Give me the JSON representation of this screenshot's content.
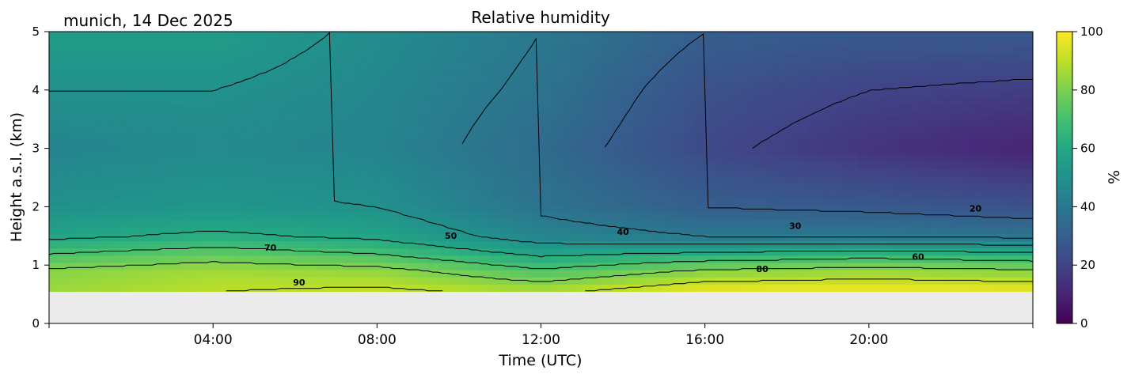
{
  "chart_data": {
    "type": "heatmap",
    "title": "Relative humidity",
    "subtitle": "munich, 14 Dec 2025",
    "xlabel": "Time (UTC)",
    "ylabel": "Height a.s.l. (km)",
    "x_range_hours": [
      0,
      24
    ],
    "ylim": [
      0,
      5
    ],
    "x_ticks": [
      "04:00",
      "08:00",
      "12:00",
      "16:00",
      "20:00"
    ],
    "x_tick_hours": [
      4,
      8,
      12,
      16,
      20
    ],
    "y_ticks": [
      "0",
      "1",
      "2",
      "3",
      "4",
      "5"
    ],
    "y_tick_values": [
      0,
      1,
      2,
      3,
      4,
      5
    ],
    "colorbar": {
      "label": "%",
      "range": [
        0,
        100
      ],
      "ticks": [
        "0",
        "20",
        "40",
        "60",
        "80",
        "100"
      ],
      "tick_values": [
        0,
        20,
        40,
        60,
        80,
        100
      ],
      "colormap": "viridis"
    },
    "missing_below_km": 0.55,
    "missing_color": "#ebebeb",
    "contour_levels": [
      20,
      30,
      40,
      50,
      60,
      70,
      80,
      90
    ],
    "contour_labels": [
      {
        "text": "90",
        "hour": 6.1,
        "km": 0.65
      },
      {
        "text": "70",
        "hour": 5.4,
        "km": 1.25
      },
      {
        "text": "50",
        "hour": 9.8,
        "km": 1.45
      },
      {
        "text": "40",
        "hour": 14.0,
        "km": 1.52
      },
      {
        "text": "80",
        "hour": 17.4,
        "km": 0.88
      },
      {
        "text": "30",
        "hour": 18.2,
        "km": 1.62
      },
      {
        "text": "60",
        "hour": 21.2,
        "km": 1.09
      },
      {
        "text": "20",
        "hour": 22.6,
        "km": 1.92
      }
    ],
    "rh_profiles": [
      {
        "hour": 0.0,
        "km": [
          0.55,
          0.9,
          1.2,
          1.5,
          2.0,
          3.0,
          4.0,
          5.0
        ],
        "rh": [
          85,
          82,
          70,
          58,
          50,
          45,
          50,
          55
        ]
      },
      {
        "hour": 4.0,
        "km": [
          0.55,
          0.9,
          1.2,
          1.5,
          2.0,
          3.0,
          4.0,
          5.0
        ],
        "rh": [
          90,
          86,
          75,
          62,
          52,
          47,
          50,
          55
        ]
      },
      {
        "hour": 8.0,
        "km": [
          0.55,
          0.9,
          1.2,
          1.5,
          2.0,
          3.0,
          4.0,
          5.0
        ],
        "rh": [
          92,
          84,
          70,
          58,
          50,
          45,
          46,
          48
        ]
      },
      {
        "hour": 12.0,
        "km": [
          0.55,
          0.9,
          1.2,
          1.5,
          2.0,
          3.0,
          4.0,
          5.0
        ],
        "rh": [
          88,
          72,
          58,
          45,
          38,
          35,
          38,
          40
        ]
      },
      {
        "hour": 16.0,
        "km": [
          0.55,
          0.9,
          1.2,
          1.5,
          2.0,
          3.0,
          4.0,
          5.0
        ],
        "rh": [
          98,
          82,
          62,
          40,
          30,
          22,
          25,
          30
        ]
      },
      {
        "hour": 20.0,
        "km": [
          0.55,
          0.9,
          1.2,
          1.5,
          2.0,
          3.0,
          4.0,
          5.0
        ],
        "rh": [
          99,
          85,
          65,
          40,
          28,
          15,
          20,
          28
        ]
      },
      {
        "hour": 24.0,
        "km": [
          0.55,
          0.9,
          1.2,
          1.5,
          2.0,
          3.0,
          4.0,
          5.0
        ],
        "rh": [
          98,
          82,
          62,
          38,
          25,
          10,
          18,
          28
        ]
      }
    ]
  }
}
